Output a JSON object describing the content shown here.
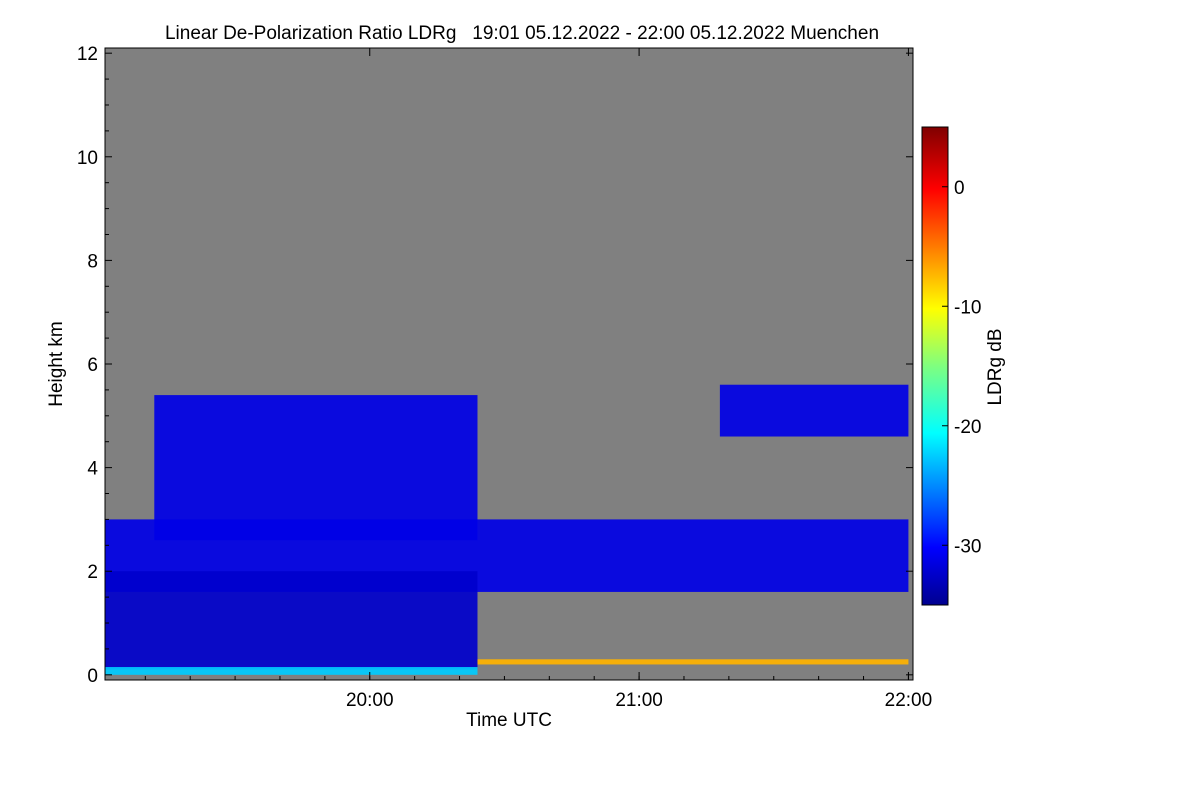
{
  "chart_data": {
    "type": "heatmap",
    "title": "Linear De-Polarization Ratio LDRg   19:01 05.12.2022 - 22:00 05.12.2022 Muenchen",
    "xlabel": "Time UTC",
    "ylabel": "Height km",
    "x_start_hours": 19.017,
    "x_end_hours": 22.0,
    "xlim_hours": [
      19.017,
      22.017
    ],
    "x_ticks": [
      {
        "label": "20:00",
        "value": 20.0
      },
      {
        "label": "21:00",
        "value": 21.0
      },
      {
        "label": "22:00",
        "value": 22.0
      }
    ],
    "ylim_km": [
      -0.1,
      12.1
    ],
    "y_ticks": [
      0,
      2,
      4,
      6,
      8,
      10,
      12
    ],
    "colorbar": {
      "label": "LDRg dB",
      "range_db": [
        -35,
        5
      ],
      "ticks": [
        0,
        -10,
        -20,
        -30
      ],
      "colormap": "jet"
    },
    "background_color": "#808080",
    "regions": [
      {
        "name": "main cloud layer",
        "time_range_hours": [
          19.017,
          22.0
        ],
        "height_range_km": [
          1.6,
          3.0
        ],
        "ldr_db": -31
      },
      {
        "name": "dense lower layer",
        "time_range_hours": [
          19.017,
          20.4
        ],
        "height_range_km": [
          0.1,
          2.0
        ],
        "ldr_db": -32
      },
      {
        "name": "near-ground layer",
        "time_range_hours": [
          19.017,
          20.4
        ],
        "height_range_km": [
          0.0,
          0.15
        ],
        "ldr_db": -22
      },
      {
        "name": "fall streaks",
        "time_range_hours": [
          19.2,
          20.4
        ],
        "height_range_km": [
          2.6,
          5.4
        ],
        "ldr_db": -31
      },
      {
        "name": "upper cloud",
        "time_range_hours": [
          21.3,
          22.0
        ],
        "height_range_km": [
          4.6,
          5.6
        ],
        "ldr_db": -31
      },
      {
        "name": "surface line",
        "time_range_hours": [
          20.4,
          22.0
        ],
        "height_range_km": [
          0.2,
          0.3
        ],
        "ldr_db": -7
      }
    ]
  }
}
